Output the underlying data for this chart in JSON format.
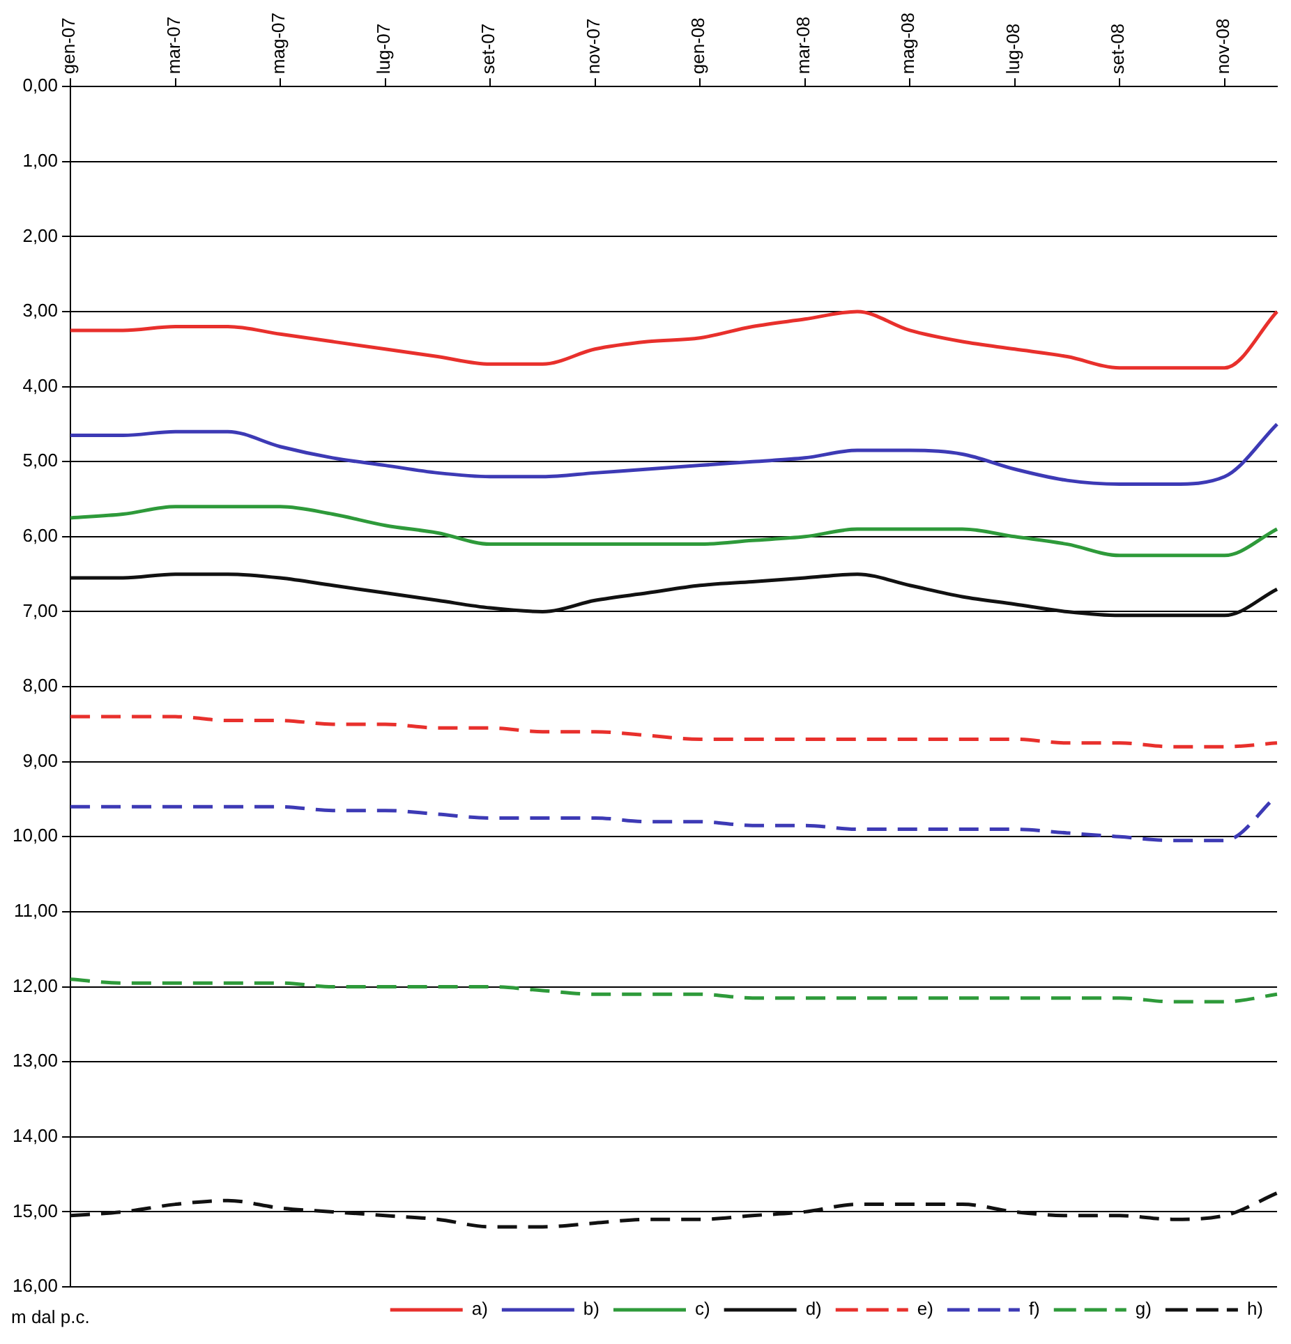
{
  "chart_data": {
    "type": "line",
    "annotations": [
      "m dal p.c."
    ],
    "categories": [
      "gen-07",
      null,
      "mar-07",
      null,
      "mag-07",
      null,
      "lug-07",
      null,
      "set-07",
      null,
      "nov-07",
      null,
      "gen-08",
      null,
      "mar-08",
      null,
      "mag-08",
      null,
      "lug-08",
      null,
      "set-08",
      null,
      "nov-08",
      null
    ],
    "ylim": [
      16,
      0
    ],
    "yticks": [
      {
        "value": 0,
        "label": "0,00"
      },
      {
        "value": 1,
        "label": "1,00"
      },
      {
        "value": 2,
        "label": "2,00"
      },
      {
        "value": 3,
        "label": "3,00"
      },
      {
        "value": 4,
        "label": "4,00"
      },
      {
        "value": 5,
        "label": "5,00"
      },
      {
        "value": 6,
        "label": "6,00"
      },
      {
        "value": 7,
        "label": "7,00"
      },
      {
        "value": 8,
        "label": "8,00"
      },
      {
        "value": 9,
        "label": "9,00"
      },
      {
        "value": 10,
        "label": "10,00"
      },
      {
        "value": 11,
        "label": "11,00"
      },
      {
        "value": 12,
        "label": "12,00"
      },
      {
        "value": 13,
        "label": "13,00"
      },
      {
        "value": 14,
        "label": "14,00"
      },
      {
        "value": 15,
        "label": "15,00"
      },
      {
        "value": 16,
        "label": "16,00"
      }
    ],
    "grid": "y",
    "legend": "bottom",
    "marker": "none",
    "series": [
      {
        "name": "a)",
        "color": "#e8302c",
        "line_style": "solid",
        "values": [
          3.25,
          3.25,
          3.2,
          3.2,
          3.3,
          3.4,
          3.5,
          3.6,
          3.7,
          3.7,
          3.5,
          3.4,
          3.35,
          3.2,
          3.1,
          3.0,
          3.25,
          3.4,
          3.5,
          3.6,
          3.75,
          3.75,
          3.75,
          3.0
        ]
      },
      {
        "name": "b)",
        "color": "#3d3ab5",
        "line_style": "solid",
        "values": [
          4.65,
          4.65,
          4.6,
          4.6,
          4.8,
          4.95,
          5.05,
          5.15,
          5.2,
          5.2,
          5.15,
          5.1,
          5.05,
          5.0,
          4.95,
          4.85,
          4.85,
          4.9,
          5.1,
          5.25,
          5.3,
          5.3,
          5.2,
          4.5
        ]
      },
      {
        "name": "c)",
        "color": "#2e9a3a",
        "line_style": "solid",
        "values": [
          5.75,
          5.7,
          5.6,
          5.6,
          5.6,
          5.7,
          5.85,
          5.95,
          6.1,
          6.1,
          6.1,
          6.1,
          6.1,
          6.05,
          6.0,
          5.9,
          5.9,
          5.9,
          6.0,
          6.1,
          6.25,
          6.25,
          6.25,
          5.9
        ]
      },
      {
        "name": "d)",
        "color": "#111111",
        "line_style": "solid",
        "values": [
          6.55,
          6.55,
          6.5,
          6.5,
          6.55,
          6.65,
          6.75,
          6.85,
          6.95,
          7.0,
          6.85,
          6.75,
          6.65,
          6.6,
          6.55,
          6.5,
          6.65,
          6.8,
          6.9,
          7.0,
          7.05,
          7.05,
          7.05,
          6.7
        ]
      },
      {
        "name": "e)",
        "color": "#e8302c",
        "line_style": "dashed",
        "values": [
          8.4,
          8.4,
          8.4,
          8.45,
          8.45,
          8.5,
          8.5,
          8.55,
          8.55,
          8.6,
          8.6,
          8.65,
          8.7,
          8.7,
          8.7,
          8.7,
          8.7,
          8.7,
          8.7,
          8.75,
          8.75,
          8.8,
          8.8,
          8.75
        ]
      },
      {
        "name": "f)",
        "color": "#3d3ab5",
        "line_style": "dashed",
        "values": [
          9.6,
          9.6,
          9.6,
          9.6,
          9.6,
          9.65,
          9.65,
          9.7,
          9.75,
          9.75,
          9.75,
          9.8,
          9.8,
          9.85,
          9.85,
          9.9,
          9.9,
          9.9,
          9.9,
          9.95,
          10.0,
          10.05,
          10.05,
          9.45
        ]
      },
      {
        "name": "g)",
        "color": "#2e9a3a",
        "line_style": "dashed",
        "values": [
          11.9,
          11.95,
          11.95,
          11.95,
          11.95,
          12.0,
          12.0,
          12.0,
          12.0,
          12.05,
          12.1,
          12.1,
          12.1,
          12.15,
          12.15,
          12.15,
          12.15,
          12.15,
          12.15,
          12.15,
          12.15,
          12.2,
          12.2,
          12.1
        ]
      },
      {
        "name": "h)",
        "color": "#111111",
        "line_style": "dashed",
        "values": [
          15.05,
          15.0,
          14.9,
          14.85,
          14.95,
          15.0,
          15.05,
          15.1,
          15.2,
          15.2,
          15.15,
          15.1,
          15.1,
          15.05,
          15.0,
          14.9,
          14.9,
          14.9,
          15.0,
          15.05,
          15.05,
          15.1,
          15.05,
          14.75
        ]
      }
    ]
  }
}
